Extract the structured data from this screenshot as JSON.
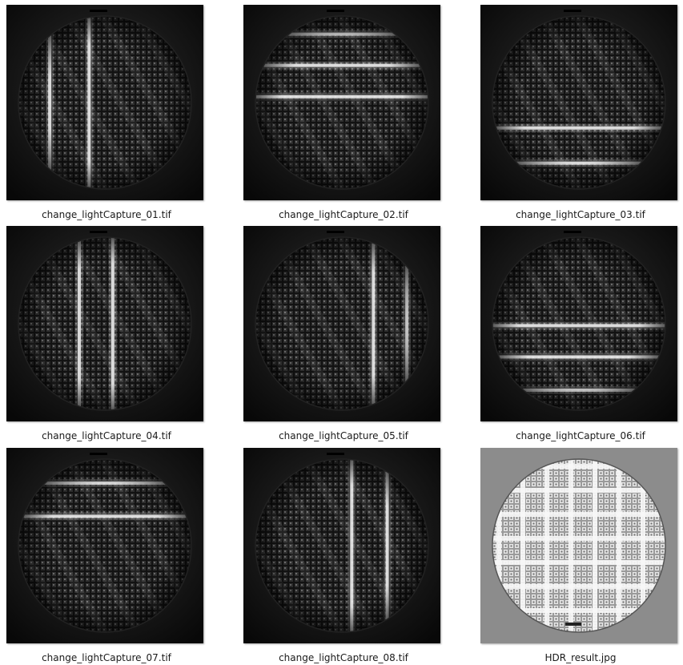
{
  "files": [
    {
      "name": "change_lightCapture_01.tif",
      "type": "tif",
      "bars": "vertical",
      "bar_positions": [
        0.22,
        0.42
      ],
      "hdr": false
    },
    {
      "name": "change_lightCapture_02.tif",
      "type": "tif",
      "bars": "horizontal",
      "bar_positions": [
        0.15,
        0.31,
        0.47
      ],
      "hdr": false
    },
    {
      "name": "change_lightCapture_03.tif",
      "type": "tif",
      "bars": "horizontal",
      "bar_positions": [
        0.63,
        0.81
      ],
      "hdr": false
    },
    {
      "name": "change_lightCapture_04.tif",
      "type": "tif",
      "bars": "vertical",
      "bar_positions": [
        0.37,
        0.54
      ],
      "hdr": false
    },
    {
      "name": "change_lightCapture_05.tif",
      "type": "tif",
      "bars": "vertical",
      "bar_positions": [
        0.66,
        0.83
      ],
      "hdr": false
    },
    {
      "name": "change_lightCapture_06.tif",
      "type": "tif",
      "bars": "horizontal",
      "bar_positions": [
        0.51,
        0.67,
        0.84
      ],
      "hdr": false
    },
    {
      "name": "change_lightCapture_07.tif",
      "type": "tif",
      "bars": "horizontal",
      "bar_positions": [
        0.18,
        0.35
      ],
      "hdr": false
    },
    {
      "name": "change_lightCapture_08.tif",
      "type": "tif",
      "bars": "vertical",
      "bar_positions": [
        0.55,
        0.73
      ],
      "hdr": false
    },
    {
      "name": "HDR_result.jpg",
      "type": "jpg",
      "bars": "none",
      "bar_positions": [],
      "hdr": true
    }
  ]
}
